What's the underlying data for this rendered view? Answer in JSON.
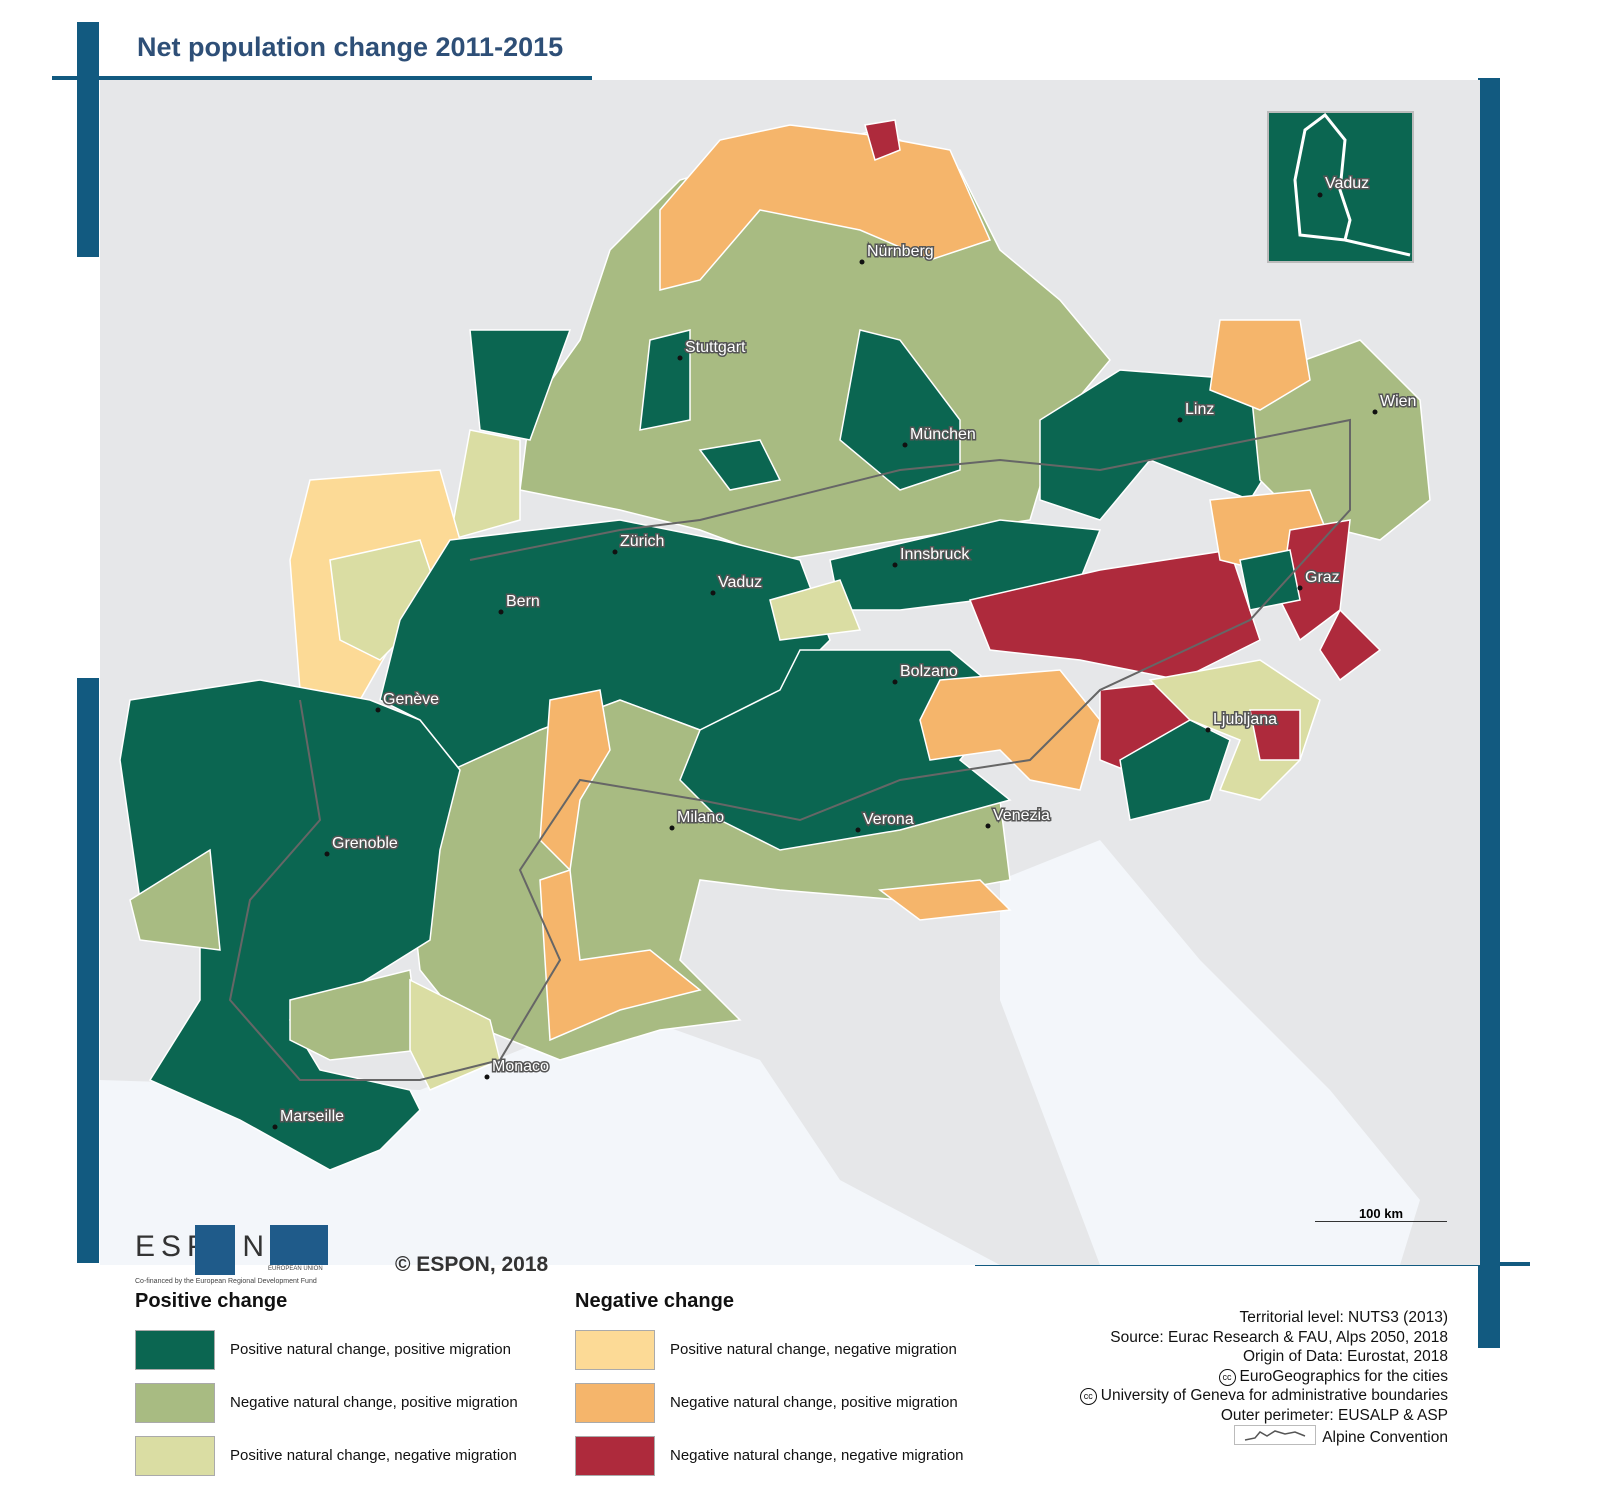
{
  "title": "Net population change 2011-2015",
  "cities": [
    {
      "name": "Nürnberg"
    },
    {
      "name": "Stuttgart"
    },
    {
      "name": "München"
    },
    {
      "name": "Linz"
    },
    {
      "name": "Wien"
    },
    {
      "name": "Zürich"
    },
    {
      "name": "Vaduz"
    },
    {
      "name": "Bern"
    },
    {
      "name": "Innsbruck"
    },
    {
      "name": "Graz"
    },
    {
      "name": "Genève"
    },
    {
      "name": "Bolzano"
    },
    {
      "name": "Ljubljana"
    },
    {
      "name": "Milano"
    },
    {
      "name": "Verona"
    },
    {
      "name": "Venezia"
    },
    {
      "name": "Grenoble"
    },
    {
      "name": "Monaco"
    },
    {
      "name": "Marseille"
    }
  ],
  "inset": {
    "city": "Vaduz"
  },
  "scale_bar": "100 km",
  "logos": {
    "espon": "ESPON",
    "eu": "EUROPEAN UNION",
    "cofinanced": "Co-financed by the European Regional Development Fund"
  },
  "copyright": "© ESPON, 2018",
  "legend": {
    "positive": {
      "heading": "Positive change",
      "items": [
        {
          "label": "Positive natural change, positive migration",
          "color": "#0b6651"
        },
        {
          "label": "Negative natural change, positive migration",
          "color": "#a8bb82"
        },
        {
          "label": "Positive natural change, negative migration",
          "color": "#dadda3"
        }
      ]
    },
    "negative": {
      "heading": "Negative change",
      "items": [
        {
          "label": "Positive natural change, negative migration",
          "color": "#fcda96"
        },
        {
          "label": "Negative natural change, positive migration",
          "color": "#f5b56b"
        },
        {
          "label": "Negative natural change, negative migration",
          "color": "#ae2a3c"
        }
      ]
    }
  },
  "credits": {
    "territorial": "Territorial level: NUTS3 (2013)",
    "source": "Source: Eurac Research & FAU, Alps 2050, 2018",
    "origin": "Origin of Data: Eurostat, 2018",
    "cities": "EuroGeographics for the cities",
    "boundaries": "University of Geneva for administrative boundaries",
    "perimeter": "Outer perimeter: EUSALP & ASP",
    "alpine": "Alpine Convention"
  }
}
